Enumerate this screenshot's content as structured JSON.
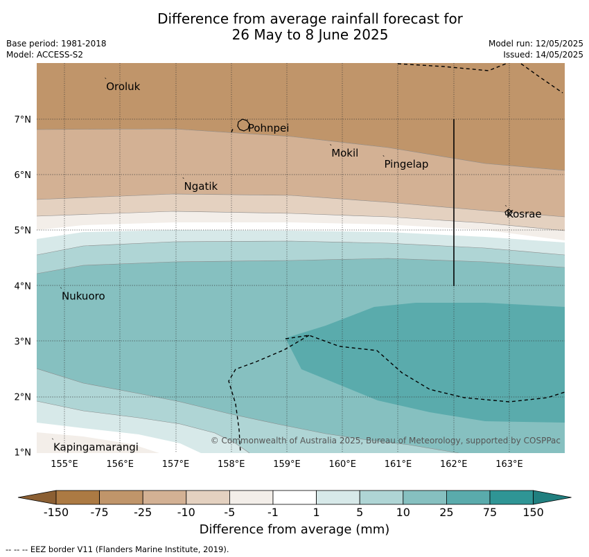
{
  "title": {
    "line1": "Difference from average rainfall forecast for",
    "line2": "26 May to 8 June 2025"
  },
  "meta": {
    "base_period": "Base period: 1981-2018",
    "model": "Model: ACCESS-S2",
    "model_run": "Model run: 12/05/2025",
    "issued": "Issued: 14/05/2025"
  },
  "map": {
    "lon_ticks": [
      "155°E",
      "156°E",
      "157°E",
      "158°E",
      "159°E",
      "160°E",
      "161°E",
      "162°E",
      "163°E"
    ],
    "lat_ticks": [
      "7°N",
      "6°N",
      "5°N",
      "4°N",
      "3°N",
      "2°N",
      "1°N"
    ],
    "places": [
      {
        "name": "Oroluk",
        "lon": 155.75,
        "lat": 7.6
      },
      {
        "name": "Pohnpei",
        "lon": 158.3,
        "lat": 6.85
      },
      {
        "name": "Mokil",
        "lon": 159.8,
        "lat": 6.4
      },
      {
        "name": "Pingelap",
        "lon": 160.75,
        "lat": 6.2
      },
      {
        "name": "Ngatik",
        "lon": 157.15,
        "lat": 5.8
      },
      {
        "name": "Kosrae",
        "lon": 162.95,
        "lat": 5.3
      },
      {
        "name": "Nukuoro",
        "lon": 154.95,
        "lat": 3.82
      },
      {
        "name": "Kapingamarangi",
        "lon": 154.8,
        "lat": 1.1
      }
    ],
    "copyright": "© Commonwealth of Australia 2025, Bureau of Meteorology, supported by COSPPac"
  },
  "colorbar": {
    "title": "Difference from average (mm)",
    "tick_labels": [
      "-150",
      "-75",
      "-25",
      "-10",
      "-5",
      "-1",
      "1",
      "5",
      "10",
      "25",
      "75",
      "150"
    ],
    "colors": [
      "#ac7a43",
      "#c0956a",
      "#d3b194",
      "#e4d1c0",
      "#f3eee9",
      "#ffffff",
      "#d7e9e9",
      "#afd5d5",
      "#86c0c0",
      "#5aabac",
      "#2f9595"
    ],
    "end_colors": [
      "#8b5f33",
      "#207f7f"
    ]
  },
  "footnote": "--  --  -- EEZ border V11 (Flanders Marine Institute, 2019)."
}
